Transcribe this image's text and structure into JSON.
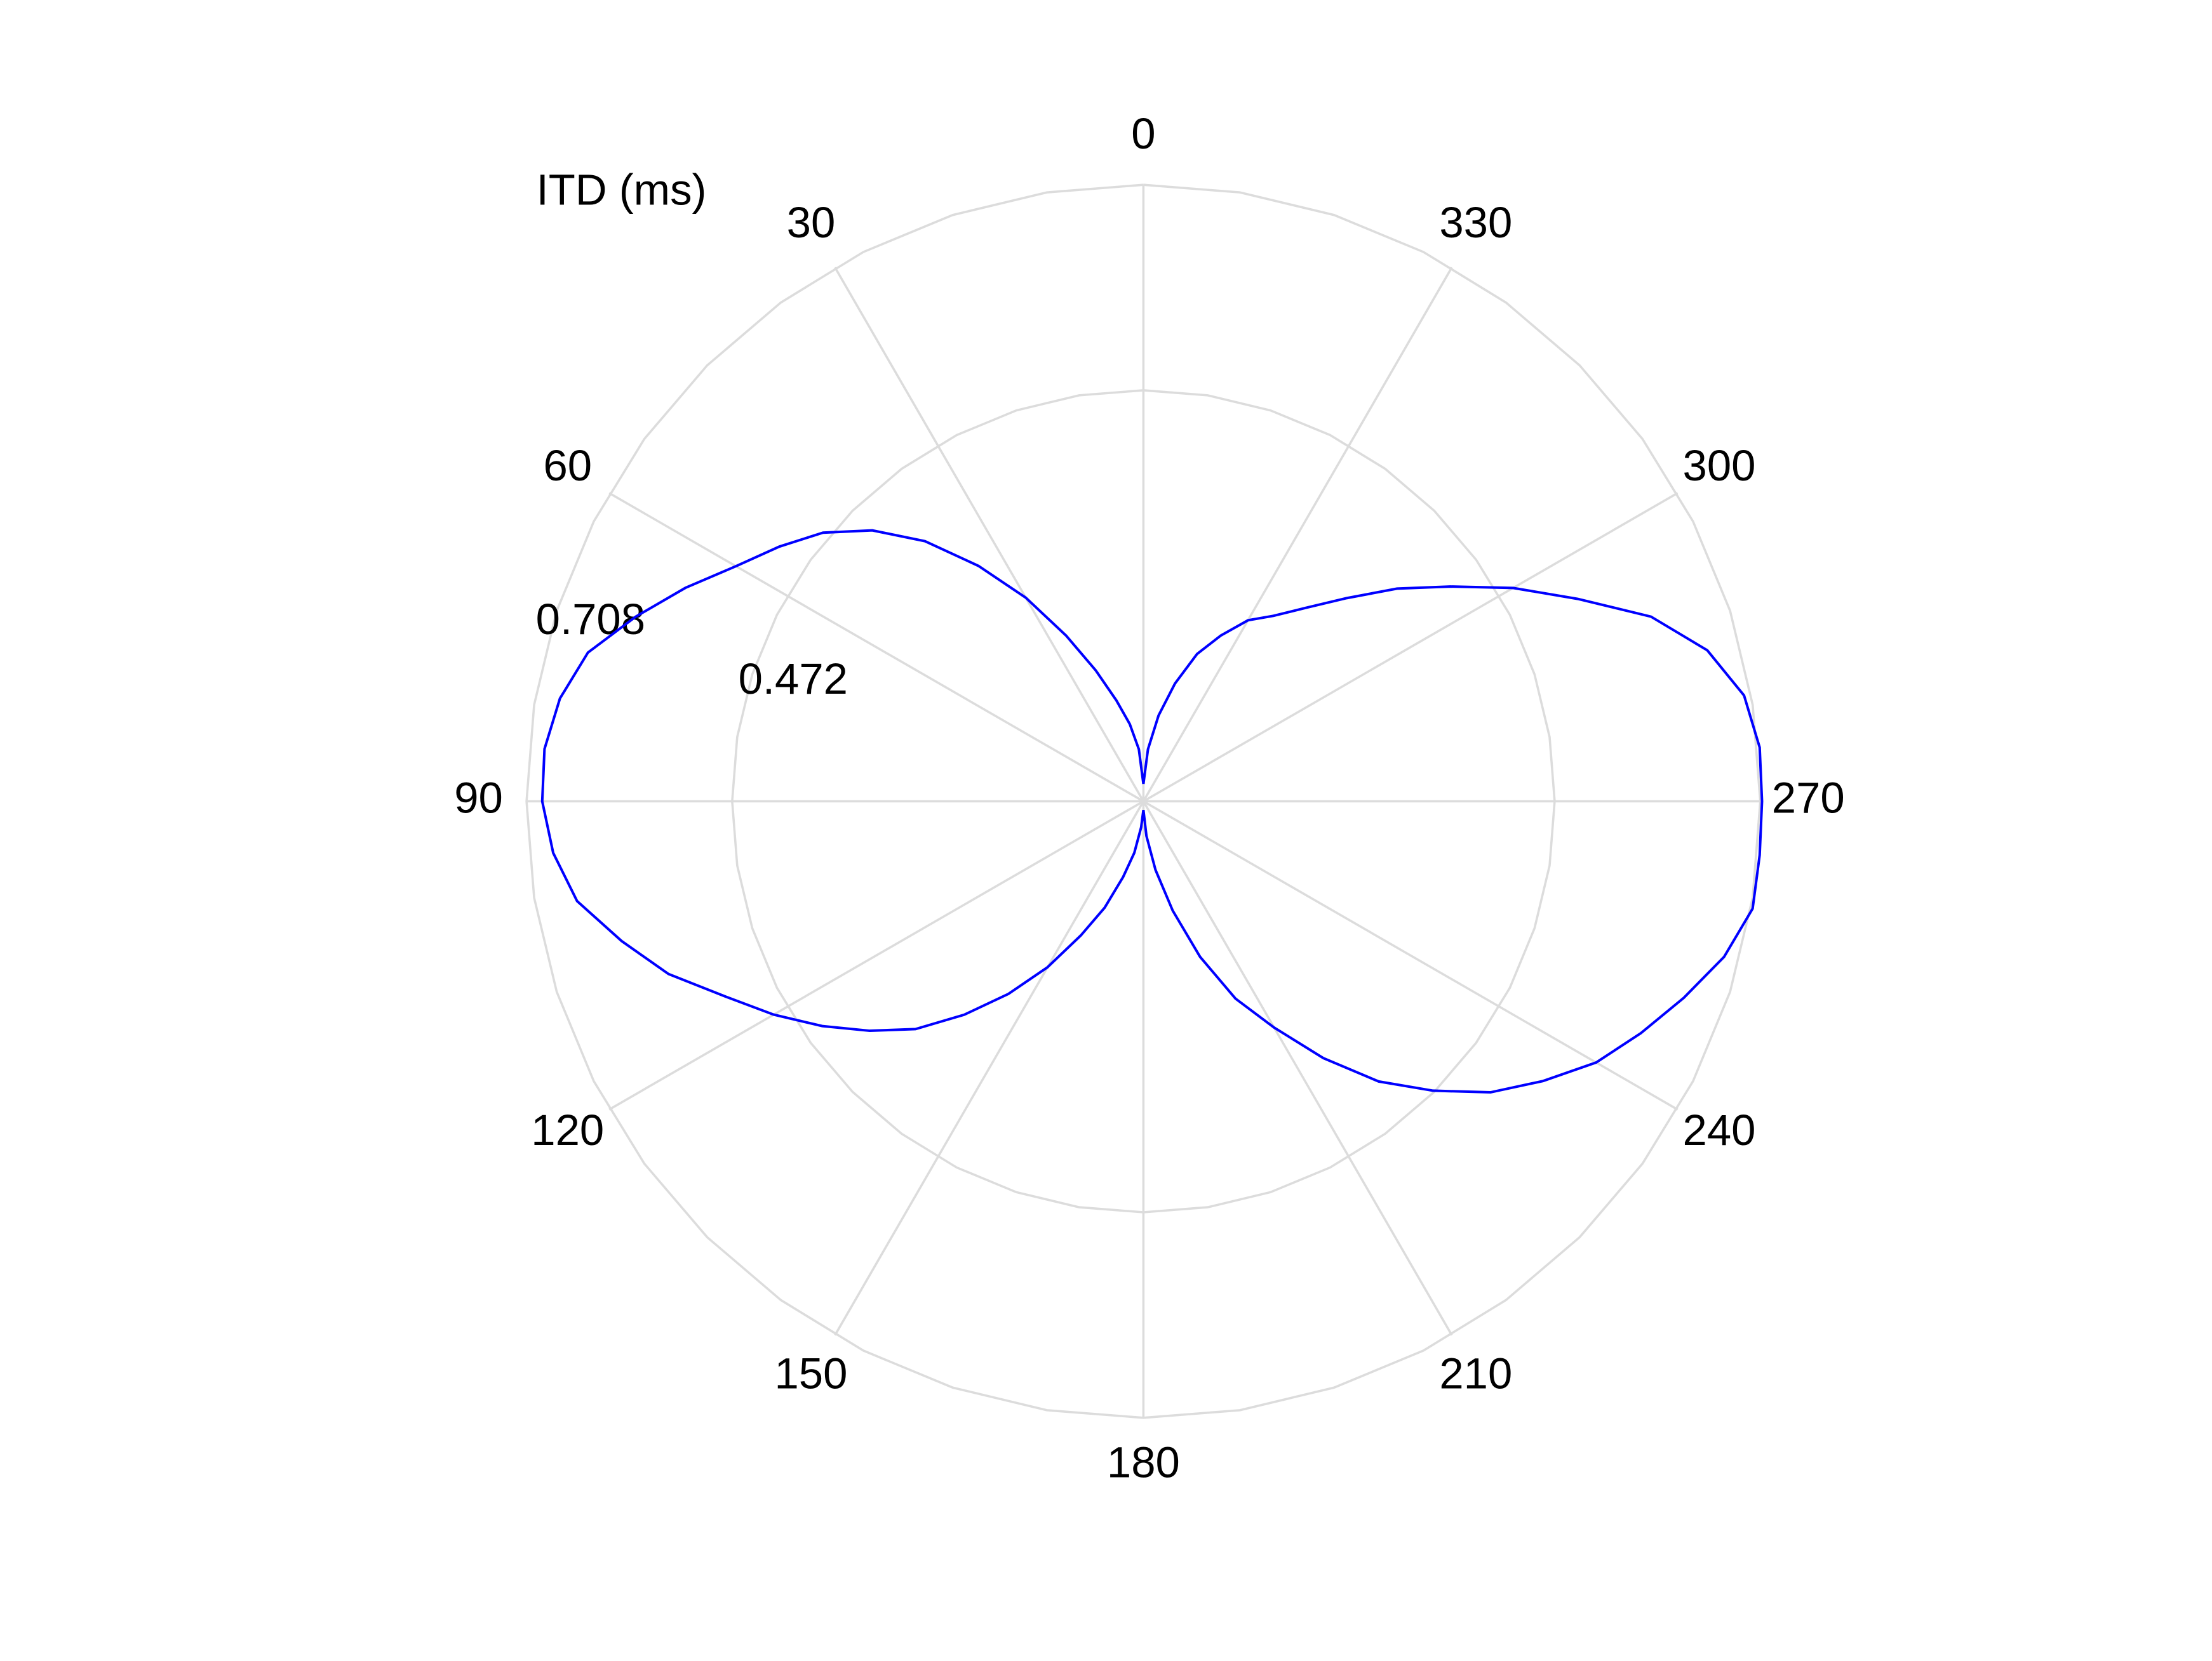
{
  "chart_data": {
    "type": "polar",
    "title": "ITD (ms)",
    "theta": [
      0,
      5,
      10,
      15,
      20,
      25,
      30,
      35,
      40,
      45,
      50,
      55,
      60,
      65,
      70,
      75,
      80,
      85,
      90,
      95,
      100,
      105,
      110,
      115,
      120,
      125,
      130,
      135,
      140,
      145,
      150,
      155,
      160,
      165,
      170,
      175,
      180,
      185,
      190,
      195,
      200,
      205,
      210,
      215,
      220,
      225,
      230,
      235,
      240,
      245,
      250,
      255,
      260,
      265,
      270,
      275,
      280,
      285,
      290,
      295,
      300,
      305,
      310,
      315,
      320,
      325,
      330,
      335,
      340,
      345,
      350,
      355,
      360
    ],
    "values": [
      0.02,
      0.06,
      0.09,
      0.12,
      0.16,
      0.21,
      0.27,
      0.33,
      0.39,
      0.44,
      0.48,
      0.51,
      0.54,
      0.58,
      0.62,
      0.66,
      0.68,
      0.69,
      0.69,
      0.68,
      0.66,
      0.62,
      0.58,
      0.53,
      0.49,
      0.45,
      0.41,
      0.37,
      0.32,
      0.27,
      0.22,
      0.17,
      0.13,
      0.09,
      0.06,
      0.03,
      0.01,
      0.04,
      0.08,
      0.13,
      0.19,
      0.25,
      0.3,
      0.36,
      0.42,
      0.47,
      0.52,
      0.56,
      0.6,
      0.63,
      0.66,
      0.69,
      0.71,
      0.71,
      0.71,
      0.71,
      0.7,
      0.67,
      0.62,
      0.55,
      0.49,
      0.43,
      0.38,
      0.33,
      0.29,
      0.26,
      0.24,
      0.21,
      0.18,
      0.14,
      0.1,
      0.06,
      0.02
    ],
    "color": "#0000ff",
    "rlim": [
      0,
      0.708
    ],
    "rticks": [
      0.472,
      0.708
    ],
    "thetaticks": [
      0,
      30,
      60,
      90,
      120,
      150,
      180,
      210,
      240,
      270,
      300,
      330
    ],
    "theta_zero": "top",
    "theta_direction": "counterclockwise",
    "grid": true
  }
}
